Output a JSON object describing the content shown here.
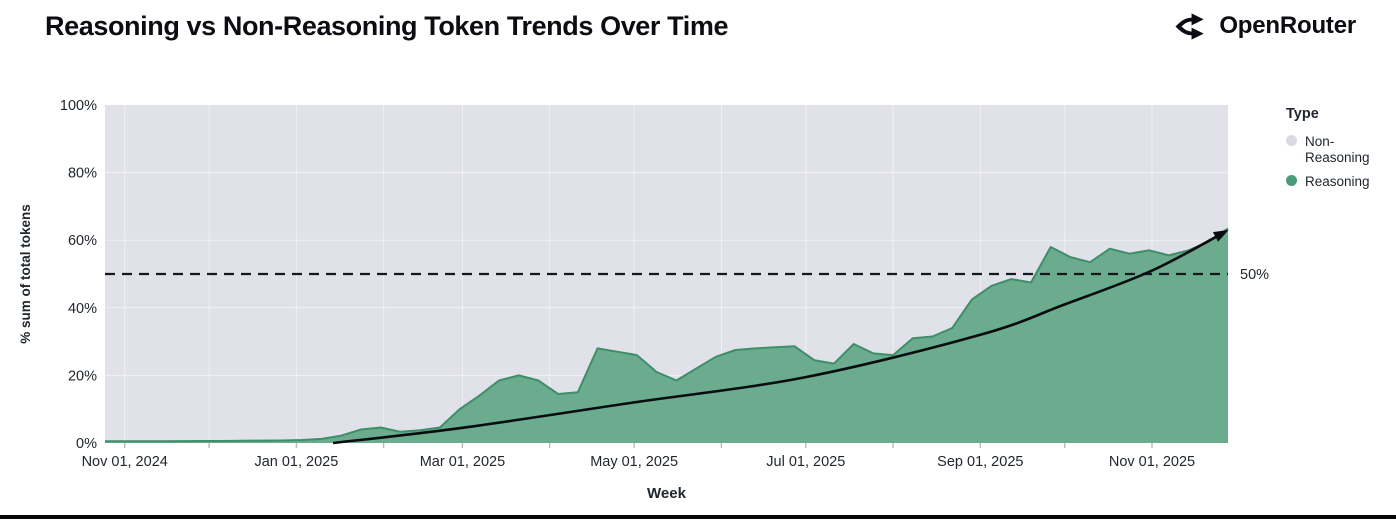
{
  "header": {
    "title": "Reasoning vs Non-Reasoning Token Trends Over Time",
    "brand": "OpenRouter"
  },
  "legend": {
    "title": "Type",
    "items": [
      {
        "label": "Non-Reasoning",
        "color": "#d9dae3"
      },
      {
        "label": "Reasoning",
        "color": "#4c9a77"
      }
    ]
  },
  "colors": {
    "plot_background": "#e0e1e9",
    "area_fill": "#64a889",
    "area_edge": "#3f8e6a",
    "dashed_line": "#15181e",
    "trend_arrow": "#0a0c10",
    "axis_text": "#21272e",
    "gridline": "rgba(255,255,255,0.55)",
    "tick_mark": "#b6b9c3"
  },
  "chart_data": {
    "type": "area",
    "stacking": "percent-share",
    "title": "Reasoning vs Non-Reasoning Token Trends Over Time",
    "xlabel": "Week",
    "ylabel": "% sum of total tokens",
    "ylim": [
      0,
      100
    ],
    "x_domain": [
      "2024-10-25",
      "2025-11-28"
    ],
    "grid": true,
    "legend_position": "right",
    "y_ticks": [
      {
        "label": "0%",
        "value": 0
      },
      {
        "label": "20%",
        "value": 20
      },
      {
        "label": "40%",
        "value": 40
      },
      {
        "label": "60%",
        "value": 60
      },
      {
        "label": "80%",
        "value": 80
      },
      {
        "label": "100%",
        "value": 100
      }
    ],
    "x_ticks": [
      {
        "label": "Nov 01, 2024",
        "date": "2024-11-01"
      },
      {
        "label": "Jan 01, 2025",
        "date": "2025-01-01"
      },
      {
        "label": "Mar 01, 2025",
        "date": "2025-03-01"
      },
      {
        "label": "May 01, 2025",
        "date": "2025-05-01"
      },
      {
        "label": "Jul 01, 2025",
        "date": "2025-07-01"
      },
      {
        "label": "Sep 01, 2025",
        "date": "2025-09-01"
      },
      {
        "label": "Nov 01, 2025",
        "date": "2025-11-01"
      }
    ],
    "series": [
      {
        "name": "Reasoning",
        "unit": "% of total tokens per week",
        "points": [
          [
            "2024-10-25",
            0.5
          ],
          [
            "2024-11-01",
            0.5
          ],
          [
            "2024-11-08",
            0.5
          ],
          [
            "2024-11-15",
            0.5
          ],
          [
            "2024-11-22",
            0.55
          ],
          [
            "2024-11-29",
            0.6
          ],
          [
            "2024-12-06",
            0.6
          ],
          [
            "2024-12-13",
            0.65
          ],
          [
            "2024-12-20",
            0.7
          ],
          [
            "2024-12-27",
            0.75
          ],
          [
            "2025-01-03",
            0.9
          ],
          [
            "2025-01-10",
            1.2
          ],
          [
            "2025-01-17",
            2.2
          ],
          [
            "2025-01-24",
            4.0
          ],
          [
            "2025-01-31",
            4.6
          ],
          [
            "2025-02-07",
            3.3
          ],
          [
            "2025-02-14",
            3.8
          ],
          [
            "2025-02-21",
            4.6
          ],
          [
            "2025-02-28",
            10.0
          ],
          [
            "2025-03-07",
            14.0
          ],
          [
            "2025-03-14",
            18.5
          ],
          [
            "2025-03-21",
            20.0
          ],
          [
            "2025-03-28",
            18.5
          ],
          [
            "2025-04-04",
            14.5
          ],
          [
            "2025-04-11",
            15.0
          ],
          [
            "2025-04-18",
            28.0
          ],
          [
            "2025-04-25",
            27.0
          ],
          [
            "2025-05-02",
            26.0
          ],
          [
            "2025-05-09",
            21.0
          ],
          [
            "2025-05-16",
            18.5
          ],
          [
            "2025-05-23",
            22.0
          ],
          [
            "2025-05-30",
            25.5
          ],
          [
            "2025-06-06",
            27.5
          ],
          [
            "2025-06-13",
            28.0
          ],
          [
            "2025-06-20",
            28.3
          ],
          [
            "2025-06-27",
            28.6
          ],
          [
            "2025-07-04",
            24.5
          ],
          [
            "2025-07-11",
            23.5
          ],
          [
            "2025-07-18",
            29.3
          ],
          [
            "2025-07-25",
            26.5
          ],
          [
            "2025-08-01",
            26.0
          ],
          [
            "2025-08-08",
            31.0
          ],
          [
            "2025-08-15",
            31.5
          ],
          [
            "2025-08-22",
            34.0
          ],
          [
            "2025-08-29",
            42.5
          ],
          [
            "2025-09-05",
            46.5
          ],
          [
            "2025-09-12",
            48.5
          ],
          [
            "2025-09-19",
            47.5
          ],
          [
            "2025-09-26",
            58.0
          ],
          [
            "2025-10-03",
            55.0
          ],
          [
            "2025-10-10",
            53.5
          ],
          [
            "2025-10-17",
            57.5
          ],
          [
            "2025-10-24",
            56.0
          ],
          [
            "2025-10-31",
            57.0
          ],
          [
            "2025-11-07",
            55.5
          ],
          [
            "2025-11-14",
            57.0
          ],
          [
            "2025-11-21",
            59.5
          ],
          [
            "2025-11-28",
            63.5
          ]
        ]
      },
      {
        "name": "Non-Reasoning",
        "note": "remainder of stack: 100 minus Reasoning value each week"
      }
    ],
    "annotations": {
      "dashed_line": {
        "value": 50,
        "label": "50%"
      },
      "trend_arrow": {
        "description": "black smoothed trend curve ending in an arrowhead",
        "points": [
          [
            "2025-01-14",
            0
          ],
          [
            "2025-03-01",
            4.5
          ],
          [
            "2025-05-01",
            12
          ],
          [
            "2025-07-01",
            19.5
          ],
          [
            "2025-09-01",
            32
          ],
          [
            "2025-10-01",
            41
          ],
          [
            "2025-11-01",
            51
          ],
          [
            "2025-11-27",
            62.5
          ]
        ]
      }
    }
  }
}
